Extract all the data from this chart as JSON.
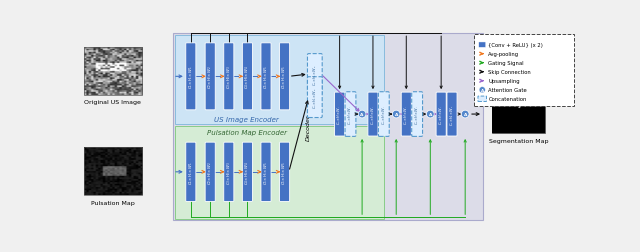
{
  "fig_width": 6.4,
  "fig_height": 2.53,
  "bg_color": "#f0f0f0",
  "block_color": "#4472c4",
  "arrow_blue": "#4472c4",
  "arrow_orange": "#f07820",
  "arrow_green": "#22aa22",
  "arrow_black": "#111111",
  "arrow_purple": "#9966cc",
  "enc_blue_bg": "#cde4f5",
  "enc_green_bg": "#d5ecd5",
  "dec_bg": "#d8d8e8",
  "legend_labels": [
    "{Conv + ReLU} (x 2)",
    "Avg-pooling",
    "Gating Signal",
    "Skip Connection",
    "Upsampling",
    "Attention Gate",
    "Concatenation"
  ],
  "legend_colors": [
    "#4472c4",
    "#f07820",
    "#22aa22",
    "#111111",
    "#9966cc",
    "#4472c4",
    "#aabbdd"
  ],
  "legend_marker_types": [
    "rect",
    "tri_right_orange",
    "tri_right_green",
    "tri_right_black",
    "tri_right_purple",
    "circle_A",
    "rect_dashed"
  ]
}
